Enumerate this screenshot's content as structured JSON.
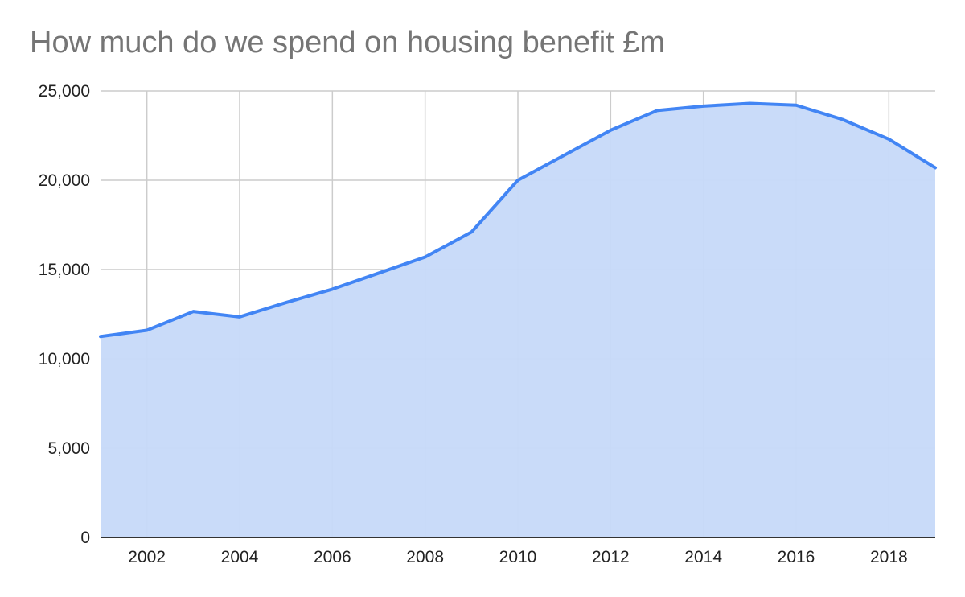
{
  "chart_data": {
    "type": "area",
    "title": "How much do we spend on housing benefit £m",
    "xlabel": "",
    "ylabel": "",
    "x": [
      2001,
      2002,
      2003,
      2004,
      2005,
      2006,
      2007,
      2008,
      2009,
      2010,
      2011,
      2012,
      2013,
      2014,
      2015,
      2016,
      2017,
      2018,
      2019
    ],
    "series": [
      {
        "values": [
          11250,
          11600,
          12650,
          12350,
          13150,
          13900,
          14800,
          15700,
          17100,
          20000,
          21400,
          22800,
          23900,
          24150,
          24300,
          24200,
          23400,
          22300,
          20700
        ]
      }
    ],
    "xlim": [
      2001,
      2019
    ],
    "ylim": [
      0,
      25000
    ],
    "x_ticks": [
      "2002",
      "2004",
      "2006",
      "2008",
      "2010",
      "2012",
      "2014",
      "2016",
      "2018"
    ],
    "y_ticks": [
      "0",
      "5,000",
      "10,000",
      "15,000",
      "20,000",
      "25,000"
    ],
    "grid": true,
    "legend": "none",
    "colors": {
      "line": "#4285F4",
      "fill": "#C6D9F9",
      "grid": "#CCCCCC",
      "axis": "#333333",
      "title": "#757575"
    }
  }
}
